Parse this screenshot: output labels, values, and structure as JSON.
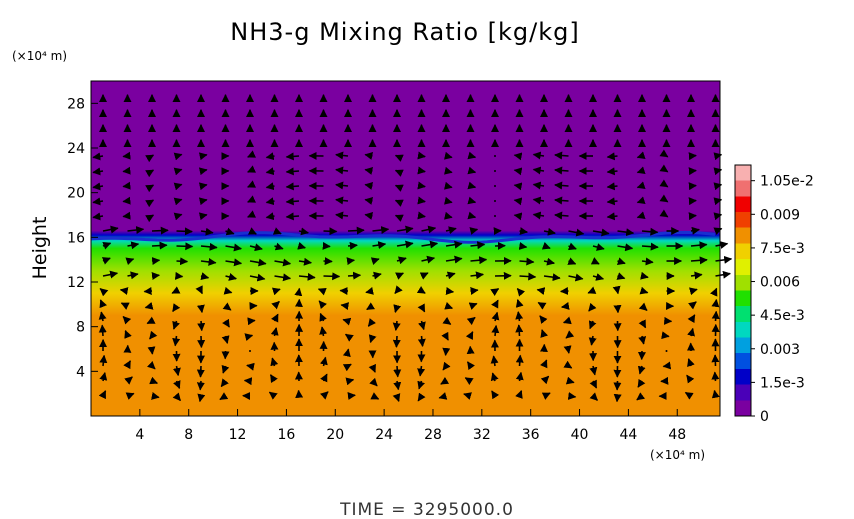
{
  "chart_data": {
    "type": "heatmap",
    "title": "NH3-g Mixing Ratio [kg/kg]",
    "ylabel": "Height",
    "x_unit": "(×10⁴ m)",
    "y_unit": "(×10⁴ m)",
    "footer": "TIME = 3295000.0",
    "xlim": [
      0,
      51.5
    ],
    "ylim": [
      0,
      30
    ],
    "x_ticks": [
      4,
      8,
      12,
      16,
      20,
      24,
      28,
      32,
      36,
      40,
      44,
      48
    ],
    "y_ticks": [
      4,
      8,
      12,
      16,
      20,
      24,
      28
    ],
    "colorbar": {
      "range": [
        0,
        0.0112
      ],
      "tick_values": [
        0,
        0.0015,
        0.003,
        0.0045,
        0.006,
        0.0075,
        0.009,
        0.0105
      ],
      "tick_labels": [
        "0",
        "1.5e-3",
        "0.003",
        "4.5e-3",
        "0.006",
        "7.5e-3",
        "0.009",
        "1.05e-2"
      ],
      "colors": [
        "#7a00a0",
        "#4a00b8",
        "#0000c8",
        "#0050e0",
        "#00a0e0",
        "#00d8c0",
        "#00e070",
        "#20e000",
        "#a0e000",
        "#e0f000",
        "#f0d000",
        "#f09000",
        "#f04000",
        "#f00000",
        "#f07070",
        "#f8b0b0"
      ]
    },
    "field_profile": [
      {
        "height": 0,
        "value": 0.0078
      },
      {
        "height": 9,
        "value": 0.0078
      },
      {
        "height": 11,
        "value": 0.007
      },
      {
        "height": 13,
        "value": 0.0058
      },
      {
        "height": 15,
        "value": 0.005
      },
      {
        "height": 15.7,
        "value": 0.004
      },
      {
        "height": 16.2,
        "value": 0.0015
      },
      {
        "height": 16.6,
        "value": 0.0002
      },
      {
        "height": 30,
        "value": 0
      }
    ],
    "vector_field": "wind vectors overlay (u, w) on a regular grid"
  }
}
